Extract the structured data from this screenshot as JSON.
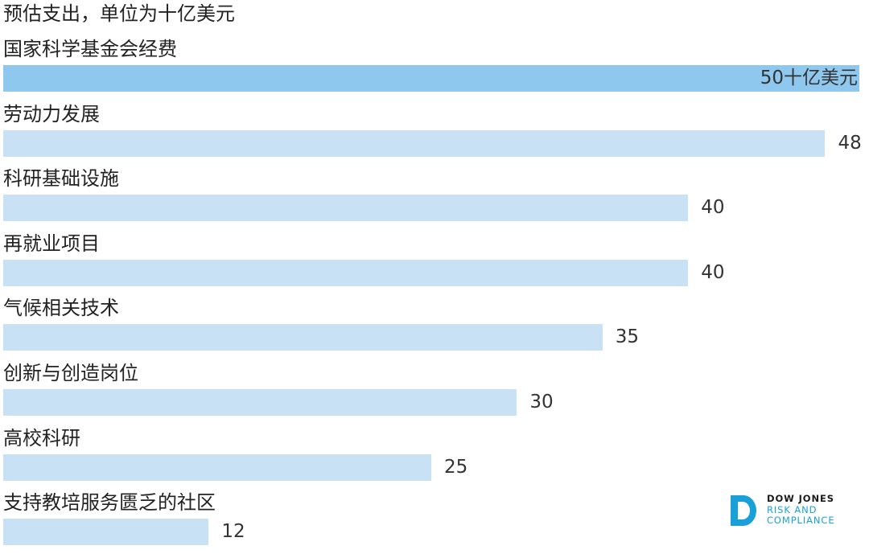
{
  "chart_data": {
    "type": "bar",
    "orientation": "horizontal",
    "subtitle": "预估支出，单位为十亿美元",
    "categories": [
      "国家科学基金会经费",
      "劳动力发展",
      "科研基础设施",
      "再就业项目",
      "气候相关技术",
      "创新与创造岗位",
      "高校科研",
      "支持教培服务匮乏的社区"
    ],
    "values": [
      50,
      48,
      40,
      40,
      35,
      30,
      25,
      12
    ],
    "value_labels": [
      "50十亿美元",
      "48",
      "40",
      "40",
      "35",
      "30",
      "25",
      "12"
    ],
    "xlim": [
      0,
      50
    ],
    "grid": false,
    "colors": {
      "highlight": "#8fc8ee",
      "default": "#c8e1f5"
    }
  },
  "logo": {
    "line1": "DOW JONES",
    "line2": "RISK AND",
    "line3": "COMPLIANCE",
    "colors": {
      "mark": "#1aa0d8",
      "text": "#1a1a1a"
    }
  }
}
